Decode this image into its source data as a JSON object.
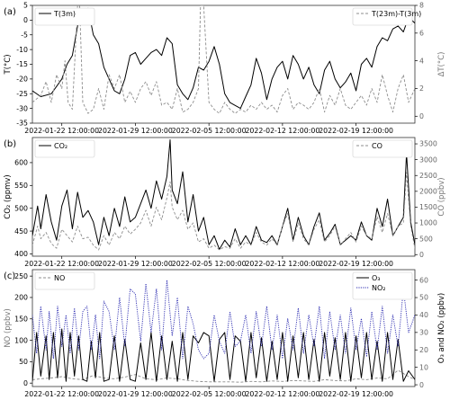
{
  "figure": {
    "x_ticks": [
      "2022-01-22 12:00:00",
      "2022-01-29 12:00:00",
      "2022-02-05 12:00:00",
      "2022-02-12 12:00:00",
      "2022-02-19 12:00:00"
    ],
    "x_tick_days": [
      0,
      7,
      14,
      21,
      28
    ],
    "x_range_days": [
      -2.8,
      33.6
    ],
    "colors": {
      "black": "#000000",
      "gray": "#8c8c8c",
      "blue": "#2b2bb0",
      "frame": "#333333"
    }
  },
  "chart_data": [
    {
      "type": "line",
      "panel_label": "(a)",
      "ylabel": "T(°C)",
      "ylabel_right": "ΔT(°C)",
      "ylim": [
        -35,
        5
      ],
      "yticks": [
        -35,
        -30,
        -25,
        -20,
        -15,
        -10,
        -5,
        0,
        5
      ],
      "ylim_right": [
        -0.5,
        8
      ],
      "yticks_right": [
        0,
        2,
        4,
        6,
        8
      ],
      "legend_left": "T(3m)",
      "legend_right": "T(23m)-T(3m)",
      "series": [
        {
          "name": "T(3m)",
          "axis": "left",
          "color": "#000000",
          "style": "solid",
          "x": [
            -2.8,
            -2,
            -1,
            0,
            0.5,
            1,
            1.5,
            2,
            2.5,
            3,
            3.5,
            4,
            4.5,
            5,
            5.5,
            6,
            6.5,
            7,
            7.5,
            8,
            8.5,
            9,
            9.5,
            10,
            10.5,
            11,
            11.5,
            12,
            12.5,
            13,
            13.5,
            14,
            14.5,
            15,
            15.5,
            16,
            16.5,
            17,
            17.5,
            18,
            18.5,
            19,
            19.5,
            20,
            20.5,
            21,
            21.5,
            22,
            22.5,
            23,
            23.5,
            24,
            24.5,
            25,
            25.5,
            26,
            26.5,
            27,
            27.5,
            28,
            28.5,
            29,
            29.5,
            30,
            30.5,
            31,
            31.5,
            32,
            32.5,
            33,
            33.6
          ],
          "y": [
            -24,
            -26,
            -25,
            -20,
            -15,
            -12,
            -2,
            3,
            4,
            -5,
            -8,
            -16,
            -20,
            -24,
            -25,
            -20,
            -12,
            -11,
            -15,
            -13,
            -11,
            -10,
            -12,
            -6,
            -8,
            -22,
            -25,
            -27,
            -23,
            -16,
            -17,
            -14,
            -9,
            -15,
            -25,
            -28,
            -29,
            -30,
            -26,
            -22,
            -13,
            -18,
            -27,
            -20,
            -16,
            -14,
            -20,
            -12,
            -15,
            -20,
            -16,
            -22,
            -25,
            -17,
            -14,
            -20,
            -23,
            -21,
            -18,
            -24,
            -15,
            -13,
            -16,
            -9,
            -6,
            -7,
            -3,
            -2,
            -4,
            1,
            -1
          ]
        },
        {
          "name": "T(23m)-T(3m)",
          "axis": "right",
          "color": "#8c8c8c",
          "style": "dashed",
          "x": [
            -2.8,
            -2,
            -1.5,
            -1,
            -0.5,
            0,
            0.3,
            0.6,
            1,
            1.5,
            1.7,
            2,
            2.5,
            3,
            3.5,
            4,
            4.5,
            5,
            5.5,
            6,
            6.5,
            7,
            7.5,
            8,
            8.5,
            9,
            9.5,
            10,
            10.5,
            11,
            11.5,
            12,
            12.5,
            13,
            13.2,
            13.5,
            14,
            14.5,
            15,
            15.5,
            16,
            16.5,
            17,
            17.5,
            18,
            18.5,
            19,
            19.5,
            20,
            20.5,
            21,
            21.5,
            22,
            22.5,
            23,
            23.5,
            24,
            24.5,
            25,
            25.5,
            26,
            26.5,
            27,
            27.5,
            28,
            28.5,
            29,
            29.5,
            30,
            30.5,
            31,
            31.5,
            32,
            32.5,
            33,
            33.6
          ],
          "y": [
            1,
            1.5,
            2.5,
            1,
            3,
            2,
            4,
            1,
            0.5,
            8,
            8,
            1,
            0.2,
            0.5,
            2,
            0.5,
            3,
            2,
            3,
            1,
            1.8,
            1,
            2,
            2.5,
            1.5,
            2.5,
            0.8,
            1,
            0.5,
            2,
            0.3,
            0.5,
            1,
            2,
            8,
            8,
            1,
            0.5,
            0.2,
            1,
            0.5,
            0.2,
            0.5,
            0.3,
            0.8,
            0.5,
            1,
            0.5,
            0.8,
            0.3,
            1.5,
            2,
            0.5,
            1,
            0.8,
            0.5,
            1,
            2,
            0.3,
            1.5,
            0.8,
            2,
            0.8,
            0.5,
            1,
            1.5,
            0.8,
            2,
            1,
            3,
            1.5,
            0.3,
            2,
            3,
            1,
            2
          ]
        }
      ]
    },
    {
      "type": "line",
      "panel_label": "(b)",
      "ylabel": "CO₂ (ppmv)",
      "ylabel_right": "CO (ppbv)",
      "ylim": [
        395,
        655
      ],
      "yticks": [
        400,
        450,
        500,
        550,
        600
      ],
      "ylim_right": [
        -50,
        3700
      ],
      "yticks_right": [
        0,
        500,
        1000,
        1500,
        2000,
        2500,
        3000,
        3500
      ],
      "legend_left": "CO₂",
      "legend_right": "CO",
      "series": [
        {
          "name": "CO₂",
          "axis": "left",
          "color": "#000000",
          "style": "solid",
          "x": [
            -2.8,
            -2.3,
            -2,
            -1.5,
            -1,
            -0.5,
            0,
            0.5,
            1,
            1.5,
            2,
            2.5,
            3,
            3.5,
            4,
            4.5,
            5,
            5.5,
            6,
            6.5,
            7,
            7.5,
            8,
            8.5,
            9,
            9.5,
            10,
            10.3,
            10.5,
            11,
            11.5,
            12,
            12.5,
            13,
            13.5,
            14,
            14.5,
            15,
            15.5,
            16,
            16.5,
            17,
            17.5,
            18,
            18.5,
            19,
            19.5,
            20,
            20.5,
            21,
            21.5,
            22,
            22.5,
            23,
            23.5,
            24,
            24.5,
            25,
            25.5,
            26,
            26.5,
            27,
            27.5,
            28,
            28.5,
            29,
            29.5,
            30,
            30.5,
            31,
            31.5,
            32,
            32.5,
            32.8,
            33.2,
            33.6
          ],
          "y": [
            440,
            505,
            455,
            530,
            470,
            430,
            505,
            540,
            455,
            535,
            480,
            495,
            470,
            420,
            480,
            440,
            500,
            460,
            525,
            470,
            480,
            510,
            540,
            500,
            560,
            520,
            570,
            650,
            540,
            510,
            580,
            470,
            530,
            450,
            480,
            420,
            440,
            410,
            430,
            415,
            455,
            420,
            440,
            420,
            460,
            430,
            425,
            440,
            420,
            460,
            500,
            430,
            480,
            440,
            420,
            460,
            490,
            430,
            445,
            465,
            420,
            430,
            440,
            430,
            470,
            440,
            430,
            500,
            460,
            520,
            440,
            460,
            480,
            620,
            470,
            420
          ]
        },
        {
          "name": "CO",
          "axis": "right",
          "color": "#8c8c8c",
          "style": "dashed",
          "x": [
            -2.8,
            -2.3,
            -2,
            -1.5,
            -1,
            -0.5,
            0,
            0.5,
            1,
            1.5,
            2,
            2.5,
            3,
            3.5,
            4,
            4.5,
            5,
            5.5,
            6,
            6.5,
            7,
            7.5,
            8,
            8.5,
            9,
            9.5,
            10,
            10.3,
            10.5,
            11,
            11.5,
            12,
            12.5,
            13,
            13.5,
            14,
            14.5,
            15,
            15.5,
            16,
            16.5,
            17,
            17.5,
            18,
            18.5,
            19,
            19.5,
            20,
            20.5,
            21,
            21.5,
            22,
            22.5,
            23,
            23.5,
            24,
            24.5,
            25,
            25.5,
            26,
            26.5,
            27,
            27.5,
            28,
            28.5,
            29,
            29.5,
            30,
            30.5,
            31,
            31.5,
            32,
            32.5,
            32.8,
            33.2,
            33.6
          ],
          "y": [
            300,
            900,
            500,
            700,
            350,
            200,
            800,
            600,
            400,
            900,
            500,
            550,
            300,
            150,
            600,
            300,
            700,
            500,
            900,
            650,
            800,
            1000,
            1400,
            900,
            1500,
            1100,
            1800,
            2300,
            1500,
            1100,
            1400,
            800,
            1000,
            400,
            500,
            200,
            300,
            150,
            250,
            200,
            500,
            200,
            400,
            300,
            700,
            400,
            300,
            500,
            300,
            900,
            1300,
            400,
            1000,
            500,
            300,
            800,
            1100,
            400,
            600,
            900,
            300,
            500,
            700,
            400,
            900,
            600,
            500,
            1200,
            700,
            1300,
            600,
            900,
            1000,
            2600,
            900,
            200
          ]
        }
      ]
    },
    {
      "type": "line",
      "panel_label": "(c)",
      "ylabel": "NO (ppbv)",
      "ylabel_right": "O₃ and NO₂ (ppbv)",
      "ylim": [
        -8,
        265
      ],
      "yticks": [
        0,
        50,
        100,
        150,
        200,
        250
      ],
      "ylim_right": [
        -1,
        66
      ],
      "yticks_right": [
        0,
        10,
        20,
        30,
        40,
        50,
        60
      ],
      "legend_left": "NO",
      "legend_right": [
        "O₃",
        "NO₂"
      ],
      "series": [
        {
          "name": "NO",
          "axis": "left",
          "color": "#8c8c8c",
          "style": "dashed",
          "x": [
            -2.8,
            -2,
            -1,
            0,
            1,
            2,
            3,
            4,
            5,
            6,
            7,
            8,
            9,
            10,
            11,
            12,
            13,
            14,
            15,
            16,
            17,
            18,
            19,
            20,
            21,
            22,
            23,
            24,
            25,
            26,
            27,
            28,
            29,
            30,
            31,
            32,
            33,
            33.6
          ],
          "y": [
            8,
            10,
            12,
            15,
            10,
            8,
            18,
            12,
            10,
            14,
            20,
            10,
            8,
            12,
            10,
            6,
            4,
            3,
            3,
            3,
            2,
            4,
            3,
            5,
            4,
            6,
            5,
            4,
            8,
            6,
            5,
            10,
            8,
            12,
            10,
            30,
            15,
            8
          ]
        },
        {
          "name": "O₃",
          "axis": "right",
          "color": "#000000",
          "style": "solid",
          "x": [
            -2.8,
            -2.4,
            -2,
            -1.5,
            -1.2,
            -0.8,
            -0.4,
            0,
            0.4,
            0.8,
            1.2,
            1.6,
            2,
            2.4,
            2.8,
            3.2,
            3.6,
            4,
            4.5,
            5,
            5.5,
            6,
            6.5,
            7,
            7.5,
            8,
            8.5,
            9,
            9.5,
            10,
            10.5,
            11,
            11.5,
            12,
            12.5,
            13,
            13.5,
            14,
            14.5,
            15,
            15.5,
            16,
            16.5,
            17,
            17.5,
            18,
            18.5,
            19,
            19.5,
            20,
            20.5,
            21,
            21.5,
            22,
            22.5,
            23,
            23.5,
            24,
            24.5,
            25,
            25.5,
            26,
            26.5,
            27,
            27.5,
            28,
            28.5,
            29,
            29.5,
            30,
            30.5,
            31,
            31.5,
            32,
            32.5,
            33,
            33.6
          ],
          "y": [
            2,
            30,
            5,
            28,
            3,
            30,
            4,
            32,
            2,
            30,
            5,
            28,
            3,
            2,
            25,
            4,
            30,
            2,
            3,
            28,
            2,
            26,
            3,
            2,
            24,
            3,
            30,
            2,
            28,
            3,
            25,
            2,
            30,
            3,
            28,
            24,
            30,
            28,
            2,
            26,
            30,
            3,
            28,
            25,
            2,
            30,
            4,
            27,
            2,
            25,
            3,
            30,
            2,
            28,
            4,
            30,
            3,
            26,
            2,
            30,
            5,
            27,
            3,
            30,
            2,
            28,
            4,
            30,
            3,
            25,
            2,
            30,
            3,
            26,
            2,
            8,
            3
          ]
        },
        {
          "name": "NO₂",
          "axis": "right",
          "color": "#2b2bb0",
          "style": "dotted",
          "x": [
            -2.8,
            -2.4,
            -2,
            -1.5,
            -1.2,
            -0.8,
            -0.4,
            0,
            0.4,
            0.8,
            1.2,
            1.6,
            2,
            2.4,
            2.8,
            3.2,
            3.6,
            4,
            4.5,
            5,
            5.5,
            6,
            6.5,
            7,
            7.5,
            8,
            8.5,
            9,
            9.5,
            10,
            10.5,
            11,
            11.5,
            12,
            12.5,
            13,
            13.5,
            14,
            14.5,
            15,
            15.5,
            16,
            16.5,
            17,
            17.5,
            18,
            18.5,
            19,
            19.5,
            20,
            20.5,
            21,
            21.5,
            22,
            22.5,
            23,
            23.5,
            24,
            24.5,
            25,
            25.5,
            26,
            26.5,
            27,
            27.5,
            28,
            28.5,
            29,
            29.5,
            30,
            30.5,
            31,
            31.5,
            32,
            32.5,
            33,
            33.6
          ],
          "y": [
            40,
            18,
            45,
            20,
            42,
            15,
            45,
            22,
            40,
            18,
            44,
            20,
            42,
            45,
            20,
            40,
            15,
            48,
            42,
            20,
            50,
            22,
            55,
            52,
            25,
            58,
            30,
            55,
            20,
            60,
            28,
            50,
            15,
            45,
            35,
            20,
            15,
            18,
            40,
            25,
            18,
            42,
            22,
            25,
            40,
            18,
            42,
            22,
            45,
            20,
            40,
            15,
            38,
            20,
            44,
            18,
            40,
            22,
            45,
            15,
            42,
            20,
            40,
            18,
            44,
            20,
            38,
            16,
            42,
            20,
            45,
            18,
            40,
            22,
            55,
            30,
            40
          ]
        }
      ]
    }
  ]
}
